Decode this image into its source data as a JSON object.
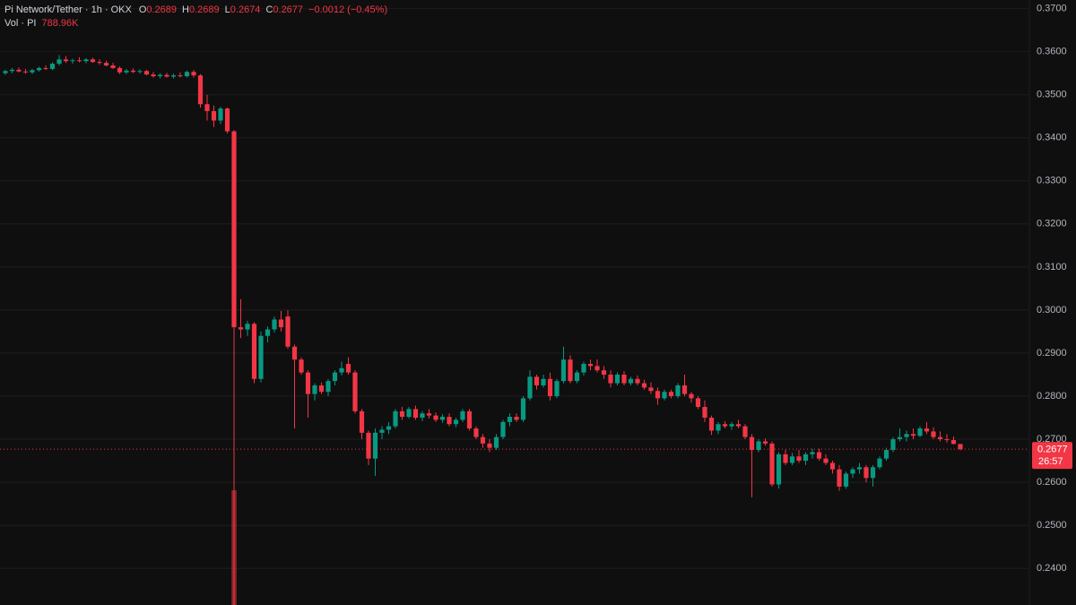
{
  "chart_data": {
    "type": "candlestick",
    "header": {
      "symbol": "Pi Network/Tether · 1h · OKX",
      "fields": [
        {
          "label": "O",
          "value": "0.2689"
        },
        {
          "label": "H",
          "value": "0.2689"
        },
        {
          "label": "L",
          "value": "0.2674"
        },
        {
          "label": "C",
          "value": "0.2677"
        }
      ],
      "change": "−0.0012 (−0.45%)",
      "volume_label": "Vol · PI",
      "volume_value": "788.96K"
    },
    "up_color": "#089981",
    "down_color": "#f23645",
    "ylim": [
      0.2315,
      0.372
    ],
    "yticks": [
      {
        "value": 0.37,
        "label": "0.3700"
      },
      {
        "value": 0.36,
        "label": "0.3600"
      },
      {
        "value": 0.35,
        "label": "0.3500"
      },
      {
        "value": 0.34,
        "label": "0.3400"
      },
      {
        "value": 0.33,
        "label": "0.3300"
      },
      {
        "value": 0.32,
        "label": "0.3200"
      },
      {
        "value": 0.31,
        "label": "0.3100"
      },
      {
        "value": 0.3,
        "label": "0.3000"
      },
      {
        "value": 0.29,
        "label": "0.2900"
      },
      {
        "value": 0.28,
        "label": "0.2800"
      },
      {
        "value": 0.27,
        "label": "0.2700"
      },
      {
        "value": 0.26,
        "label": "0.2600"
      },
      {
        "value": 0.25,
        "label": "0.2500"
      },
      {
        "value": 0.24,
        "label": "0.2400"
      }
    ],
    "grid": true,
    "last_price": 0.2677,
    "countdown": "26:57",
    "volume_spike": {
      "index": 34,
      "value": 80,
      "ylim": [
        0,
        100
      ]
    },
    "candles": [
      [
        0.355,
        0.3558,
        0.3546,
        0.3555
      ],
      [
        0.3555,
        0.3562,
        0.355,
        0.3558
      ],
      [
        0.3558,
        0.3563,
        0.3552,
        0.3554
      ],
      [
        0.3554,
        0.356,
        0.3549,
        0.3552
      ],
      [
        0.3552,
        0.356,
        0.3548,
        0.3557
      ],
      [
        0.3557,
        0.3565,
        0.3554,
        0.3562
      ],
      [
        0.3562,
        0.3568,
        0.3557,
        0.356
      ],
      [
        0.356,
        0.3575,
        0.3557,
        0.3572
      ],
      [
        0.3572,
        0.3592,
        0.3568,
        0.3582
      ],
      [
        0.3582,
        0.359,
        0.3574,
        0.3578
      ],
      [
        0.3578,
        0.3584,
        0.3572,
        0.358
      ],
      [
        0.358,
        0.3587,
        0.3575,
        0.3578
      ],
      [
        0.3578,
        0.3585,
        0.3573,
        0.3582
      ],
      [
        0.3582,
        0.3586,
        0.3574,
        0.3576
      ],
      [
        0.3576,
        0.3582,
        0.357,
        0.3574
      ],
      [
        0.3574,
        0.3579,
        0.3566,
        0.3568
      ],
      [
        0.3568,
        0.3574,
        0.356,
        0.3562
      ],
      [
        0.3562,
        0.3566,
        0.3548,
        0.3552
      ],
      [
        0.3552,
        0.356,
        0.3548,
        0.3556
      ],
      [
        0.3556,
        0.3561,
        0.355,
        0.3553
      ],
      [
        0.3553,
        0.3559,
        0.3549,
        0.3555
      ],
      [
        0.3555,
        0.3558,
        0.3545,
        0.3547
      ],
      [
        0.3547,
        0.3553,
        0.354,
        0.3543
      ],
      [
        0.3543,
        0.355,
        0.3538,
        0.3546
      ],
      [
        0.3546,
        0.3551,
        0.354,
        0.3542
      ],
      [
        0.3542,
        0.3549,
        0.3538,
        0.3545
      ],
      [
        0.3545,
        0.3552,
        0.354,
        0.3543
      ],
      [
        0.3543,
        0.3556,
        0.354,
        0.3553
      ],
      [
        0.3553,
        0.3557,
        0.354,
        0.3545
      ],
      [
        0.3545,
        0.3548,
        0.347,
        0.3478
      ],
      [
        0.3478,
        0.35,
        0.344,
        0.3462
      ],
      [
        0.3462,
        0.3475,
        0.3425,
        0.344
      ],
      [
        0.344,
        0.3472,
        0.3432,
        0.3468
      ],
      [
        0.3468,
        0.347,
        0.341,
        0.3415
      ],
      [
        0.3415,
        0.3418,
        0.2315,
        0.296
      ],
      [
        0.296,
        0.3025,
        0.2935,
        0.2955
      ],
      [
        0.2955,
        0.2975,
        0.294,
        0.2968
      ],
      [
        0.2968,
        0.2972,
        0.283,
        0.284
      ],
      [
        0.284,
        0.295,
        0.2832,
        0.294
      ],
      [
        0.294,
        0.2962,
        0.2925,
        0.2955
      ],
      [
        0.2955,
        0.2985,
        0.2948,
        0.2978
      ],
      [
        0.2978,
        0.2998,
        0.295,
        0.296
      ],
      [
        0.2985,
        0.3,
        0.291,
        0.2915
      ],
      [
        0.2915,
        0.292,
        0.2725,
        0.2885
      ],
      [
        0.2885,
        0.289,
        0.285,
        0.2855
      ],
      [
        0.2855,
        0.286,
        0.275,
        0.2805
      ],
      [
        0.2805,
        0.283,
        0.279,
        0.2825
      ],
      [
        0.2825,
        0.2832,
        0.2805,
        0.281
      ],
      [
        0.281,
        0.284,
        0.28,
        0.2835
      ],
      [
        0.2835,
        0.286,
        0.2825,
        0.2855
      ],
      [
        0.2855,
        0.288,
        0.2848,
        0.2865
      ],
      [
        0.2875,
        0.289,
        0.285,
        0.2855
      ],
      [
        0.2855,
        0.286,
        0.276,
        0.2765
      ],
      [
        0.2765,
        0.277,
        0.27,
        0.2715
      ],
      [
        0.2715,
        0.272,
        0.264,
        0.2655
      ],
      [
        0.2655,
        0.2725,
        0.2615,
        0.2715
      ],
      [
        0.2715,
        0.273,
        0.27,
        0.2722
      ],
      [
        0.2722,
        0.274,
        0.2712,
        0.273
      ],
      [
        0.273,
        0.277,
        0.2725,
        0.2765
      ],
      [
        0.2765,
        0.2775,
        0.2745,
        0.2752
      ],
      [
        0.2752,
        0.2775,
        0.2748,
        0.277
      ],
      [
        0.277,
        0.2778,
        0.2745,
        0.275
      ],
      [
        0.275,
        0.2765,
        0.2742,
        0.276
      ],
      [
        0.276,
        0.277,
        0.2748,
        0.2755
      ],
      [
        0.2755,
        0.2762,
        0.274,
        0.2745
      ],
      [
        0.2745,
        0.2758,
        0.2738,
        0.2752
      ],
      [
        0.2752,
        0.276,
        0.273,
        0.2735
      ],
      [
        0.2735,
        0.275,
        0.2728,
        0.2745
      ],
      [
        0.2745,
        0.277,
        0.274,
        0.2765
      ],
      [
        0.2765,
        0.277,
        0.272,
        0.2725
      ],
      [
        0.2725,
        0.273,
        0.27,
        0.2705
      ],
      [
        0.2705,
        0.2712,
        0.268,
        0.269
      ],
      [
        0.269,
        0.27,
        0.267,
        0.268
      ],
      [
        0.268,
        0.2712,
        0.2675,
        0.2705
      ],
      [
        0.2705,
        0.2745,
        0.27,
        0.274
      ],
      [
        0.274,
        0.276,
        0.273,
        0.2752
      ],
      [
        0.2752,
        0.276,
        0.274,
        0.2745
      ],
      [
        0.2745,
        0.28,
        0.274,
        0.2795
      ],
      [
        0.2795,
        0.286,
        0.279,
        0.2845
      ],
      [
        0.2845,
        0.285,
        0.2815,
        0.2825
      ],
      [
        0.2825,
        0.285,
        0.282,
        0.284
      ],
      [
        0.284,
        0.2855,
        0.279,
        0.28
      ],
      [
        0.28,
        0.284,
        0.2795,
        0.2835
      ],
      [
        0.2835,
        0.2915,
        0.283,
        0.2885
      ],
      [
        0.2885,
        0.2895,
        0.283,
        0.2835
      ],
      [
        0.2835,
        0.286,
        0.283,
        0.2855
      ],
      [
        0.2855,
        0.288,
        0.2848,
        0.2875
      ],
      [
        0.2875,
        0.2885,
        0.286,
        0.287
      ],
      [
        0.287,
        0.2885,
        0.2855,
        0.286
      ],
      [
        0.286,
        0.287,
        0.284,
        0.285
      ],
      [
        0.285,
        0.286,
        0.282,
        0.283
      ],
      [
        0.283,
        0.2855,
        0.2825,
        0.285
      ],
      [
        0.285,
        0.2858,
        0.2825,
        0.283
      ],
      [
        0.283,
        0.2845,
        0.2825,
        0.284
      ],
      [
        0.284,
        0.2848,
        0.2825,
        0.283
      ],
      [
        0.283,
        0.2838,
        0.2815,
        0.282
      ],
      [
        0.282,
        0.2832,
        0.2805,
        0.2812
      ],
      [
        0.2812,
        0.282,
        0.278,
        0.2795
      ],
      [
        0.2795,
        0.2815,
        0.279,
        0.281
      ],
      [
        0.281,
        0.2815,
        0.2795,
        0.28
      ],
      [
        0.28,
        0.283,
        0.2795,
        0.2825
      ],
      [
        0.2825,
        0.285,
        0.28,
        0.2805
      ],
      [
        0.2805,
        0.281,
        0.2785,
        0.2795
      ],
      [
        0.2795,
        0.28,
        0.277,
        0.2775
      ],
      [
        0.2775,
        0.279,
        0.274,
        0.275
      ],
      [
        0.275,
        0.2755,
        0.271,
        0.272
      ],
      [
        0.272,
        0.274,
        0.2712,
        0.2735
      ],
      [
        0.2735,
        0.2742,
        0.2725,
        0.273
      ],
      [
        0.273,
        0.274,
        0.2722,
        0.2735
      ],
      [
        0.2735,
        0.2745,
        0.2725,
        0.273
      ],
      [
        0.273,
        0.2735,
        0.27,
        0.2705
      ],
      [
        0.2705,
        0.2712,
        0.2565,
        0.2675
      ],
      [
        0.2675,
        0.27,
        0.267,
        0.2695
      ],
      [
        0.2695,
        0.2702,
        0.2685,
        0.269
      ],
      [
        0.269,
        0.2695,
        0.259,
        0.2595
      ],
      [
        0.2595,
        0.267,
        0.2585,
        0.2665
      ],
      [
        0.2665,
        0.2675,
        0.264,
        0.2645
      ],
      [
        0.2645,
        0.2668,
        0.264,
        0.266
      ],
      [
        0.266,
        0.2675,
        0.2645,
        0.265
      ],
      [
        0.265,
        0.267,
        0.264,
        0.2665
      ],
      [
        0.2665,
        0.2678,
        0.2655,
        0.267
      ],
      [
        0.267,
        0.2678,
        0.265,
        0.2655
      ],
      [
        0.2655,
        0.2665,
        0.264,
        0.2645
      ],
      [
        0.2645,
        0.265,
        0.262,
        0.263
      ],
      [
        0.263,
        0.264,
        0.258,
        0.259
      ],
      [
        0.259,
        0.2625,
        0.2585,
        0.262
      ],
      [
        0.262,
        0.2635,
        0.261,
        0.263
      ],
      [
        0.263,
        0.2645,
        0.262,
        0.2635
      ],
      [
        0.2635,
        0.264,
        0.26,
        0.261
      ],
      [
        0.261,
        0.264,
        0.259,
        0.2635
      ],
      [
        0.2635,
        0.266,
        0.263,
        0.2655
      ],
      [
        0.2655,
        0.268,
        0.265,
        0.2675
      ],
      [
        0.2675,
        0.2705,
        0.267,
        0.27
      ],
      [
        0.27,
        0.2725,
        0.2695,
        0.2705
      ],
      [
        0.2705,
        0.272,
        0.2695,
        0.2712
      ],
      [
        0.2712,
        0.2725,
        0.27,
        0.2708
      ],
      [
        0.2708,
        0.273,
        0.2705,
        0.2725
      ],
      [
        0.2725,
        0.274,
        0.2712,
        0.2718
      ],
      [
        0.2718,
        0.2728,
        0.27,
        0.2705
      ],
      [
        0.2705,
        0.2718,
        0.2695,
        0.27
      ],
      [
        0.27,
        0.2712,
        0.2692,
        0.2698
      ],
      [
        0.2698,
        0.2706,
        0.2688,
        0.2689
      ],
      [
        0.2689,
        0.2689,
        0.2674,
        0.2677
      ]
    ]
  }
}
